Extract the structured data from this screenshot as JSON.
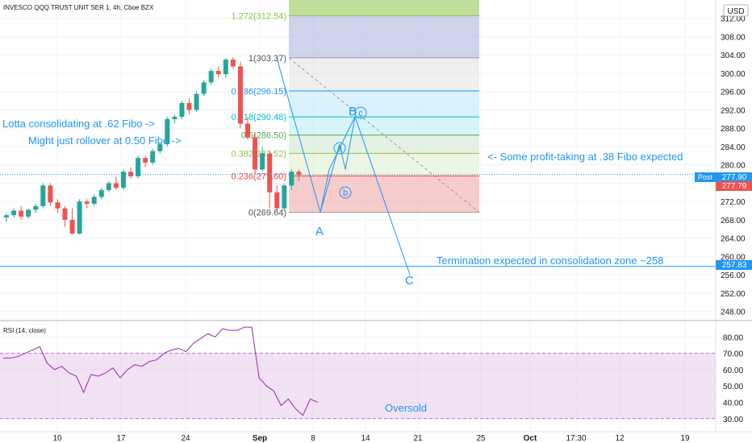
{
  "header": {
    "title": "INVESCO QQQ TRUST UNIT SER 1, 4h, Cboe BZX",
    "currency": "USD"
  },
  "price_axis": {
    "ticks": [
      "312.00",
      "308.00",
      "304.00",
      "300.00",
      "296.00",
      "292.00",
      "288.00",
      "284.00",
      "280.00",
      "276.00",
      "272.00",
      "268.00",
      "264.00",
      "260.00",
      "256.00",
      "252.00",
      "248.00"
    ],
    "post_label": "Post",
    "post_value": "277.90",
    "last_value": "277.79",
    "termination_value": "257.83"
  },
  "rsi": {
    "label": "RSI (14, close)",
    "ticks": [
      "80.00",
      "70.00",
      "60.00",
      "50.00",
      "40.00",
      "30.00"
    ],
    "overbought": 70,
    "oversold": 30
  },
  "time_axis": {
    "labels": [
      "10",
      "17",
      "24",
      "Sep",
      "8",
      "14",
      "21",
      "25",
      "Oct",
      "17:30",
      "12",
      "19"
    ]
  },
  "colors": {
    "up": "#26a69a",
    "down": "#ef5350",
    "annotation": "#2196f3",
    "rsi_line": "#9c27b0",
    "band": "#e1bee7"
  },
  "chart_data": {
    "type": "candlestick",
    "price_range": [
      246,
      316
    ],
    "candles": [
      [
        268.5,
        269.5,
        267.5,
        269.0
      ],
      [
        269.0,
        270.5,
        268.5,
        270.0
      ],
      [
        270.0,
        271.0,
        268.0,
        268.7
      ],
      [
        268.7,
        270.5,
        268.2,
        270.2
      ],
      [
        270.2,
        271.5,
        269.5,
        271.0
      ],
      [
        271.0,
        276.0,
        270.5,
        275.5
      ],
      [
        275.5,
        276.0,
        271.0,
        271.8
      ],
      [
        271.8,
        272.5,
        269.5,
        270.5
      ],
      [
        270.5,
        271.0,
        266.5,
        268.0
      ],
      [
        268.0,
        270.5,
        264.8,
        265.0
      ],
      [
        265.0,
        272.5,
        264.8,
        272.0
      ],
      [
        272.0,
        272.5,
        270.5,
        271.5
      ],
      [
        271.5,
        273.5,
        271.0,
        273.0
      ],
      [
        273.0,
        275.0,
        272.5,
        274.5
      ],
      [
        274.5,
        276.5,
        274.0,
        276.0
      ],
      [
        276.0,
        277.5,
        274.5,
        275.0
      ],
      [
        275.0,
        279.0,
        274.5,
        278.5
      ],
      [
        278.5,
        279.5,
        277.0,
        277.5
      ],
      [
        277.5,
        282.0,
        277.0,
        281.5
      ],
      [
        281.5,
        282.0,
        279.5,
        280.5
      ],
      [
        280.5,
        283.5,
        280.0,
        283.0
      ],
      [
        283.0,
        285.0,
        282.5,
        284.5
      ],
      [
        284.5,
        290.5,
        284.0,
        290.0
      ],
      [
        290.0,
        291.0,
        289.0,
        290.5
      ],
      [
        290.5,
        294.0,
        290.0,
        293.5
      ],
      [
        293.5,
        294.5,
        291.0,
        292.0
      ],
      [
        292.0,
        296.0,
        291.5,
        295.5
      ],
      [
        295.5,
        298.5,
        295.0,
        298.0
      ],
      [
        298.0,
        301.0,
        297.5,
        300.5
      ],
      [
        300.5,
        301.5,
        299.0,
        299.8
      ],
      [
        299.8,
        303.4,
        299.0,
        303.0
      ],
      [
        303.0,
        303.5,
        301.0,
        301.5
      ],
      [
        301.5,
        302.5,
        288.0,
        289.0
      ],
      [
        289.0,
        290.5,
        285.5,
        286.0
      ],
      [
        286.0,
        287.0,
        278.0,
        279.0
      ],
      [
        279.0,
        284.0,
        278.5,
        282.5
      ],
      [
        282.5,
        283.0,
        270.5,
        274.0
      ],
      [
        274.0,
        275.5,
        269.6,
        270.5
      ],
      [
        270.5,
        276.0,
        270.0,
        275.5
      ],
      [
        275.5,
        279.0,
        274.5,
        278.5
      ],
      [
        278.5,
        279.0,
        276.5,
        277.8
      ]
    ],
    "fibonacci": [
      {
        "level": "1.272",
        "price": 312.54,
        "label": "1.272(312.54)",
        "color": "#8bc34a"
      },
      {
        "level": "1",
        "price": 303.37,
        "label": "1(303.37)",
        "color": "#9e9e9e"
      },
      {
        "level": "0.786",
        "price": 296.15,
        "label": "0.786(296.15)",
        "color": "#2196f3"
      },
      {
        "level": "0.618",
        "price": 290.48,
        "label": "0.618(290.48)",
        "color": "#00bcd4"
      },
      {
        "level": "0.5",
        "price": 286.5,
        "label": "0.5(286.50)",
        "color": "#4caf50"
      },
      {
        "level": "0.382",
        "price": 282.52,
        "label": "0.382(282.52)",
        "color": "#8bc34a"
      },
      {
        "level": "0.236",
        "price": 277.6,
        "label": "0.236(277.60)",
        "color": "#f44336"
      },
      {
        "level": "0",
        "price": 269.64,
        "label": "0(269.64)",
        "color": "#9e9e9e"
      }
    ],
    "wave_labels": {
      "A": "A",
      "B": "B",
      "C": "C",
      "a": "a",
      "b": "b",
      "c": "c"
    },
    "wave_path": [
      [
        303.37,
        0
      ],
      [
        269.64,
        1
      ],
      [
        279,
        2
      ],
      [
        290.5,
        3
      ],
      [
        256,
        4
      ]
    ],
    "rsi_values": [
      67,
      67,
      68,
      70,
      72,
      74,
      64,
      60,
      62,
      58,
      56,
      46,
      57,
      56,
      58,
      61,
      55,
      60,
      63,
      62,
      65,
      66,
      70,
      72,
      73,
      71,
      76,
      79,
      82,
      80,
      85,
      84,
      84,
      86,
      86,
      55,
      50,
      47,
      38,
      42,
      36,
      32,
      42,
      40
    ]
  },
  "annotations": {
    "consolidating": "Lotta consolidating at .62 Fibo ->",
    "rollover": "Might just rollover at 0.50 Fibo ->",
    "profit_taking": "<- Some profit-taking at .38 Fibo expected",
    "termination": "Termination expected in consolidation zone ~258",
    "oversold": "Oversold"
  }
}
